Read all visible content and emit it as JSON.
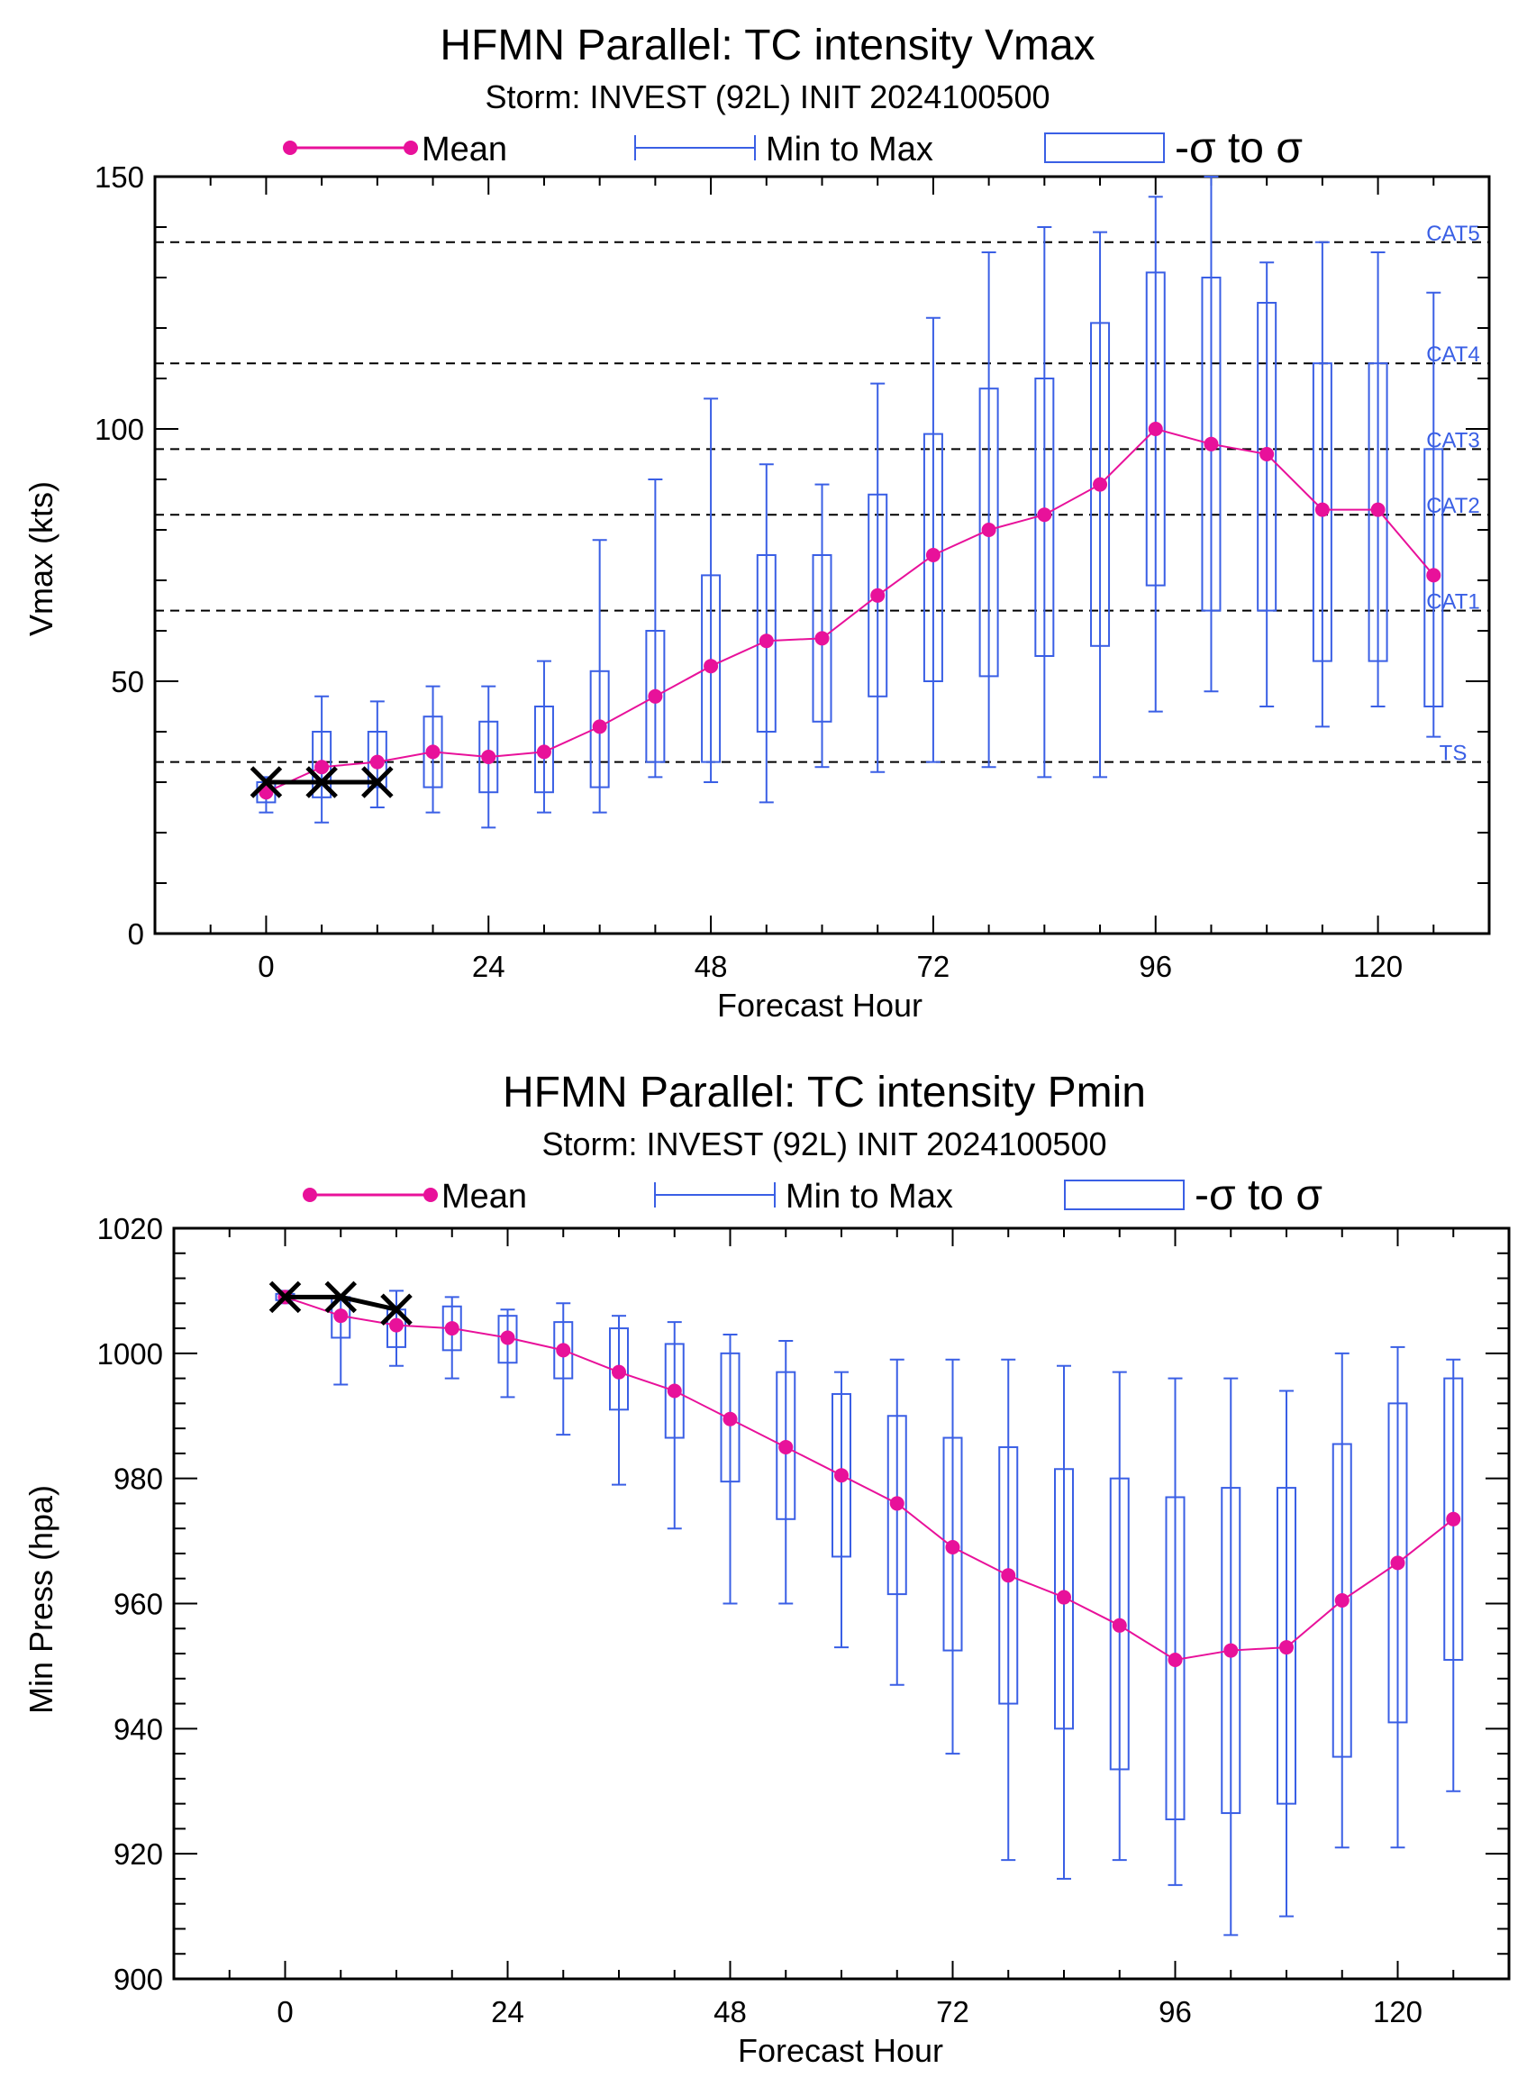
{
  "colors": {
    "mean": "#e8119a",
    "box": "#3a5fe5",
    "observed": "#000000",
    "threshold": "#000000"
  },
  "legend": {
    "mean": "Mean",
    "minmax": "Min to Max",
    "sigma": "-σ to σ"
  },
  "chart_data": [
    {
      "type": "box",
      "title": "HFMN Parallel: TC intensity Vmax",
      "subtitle": "Storm: INVEST (92L) INIT 2024100500",
      "xlabel": "Forecast Hour",
      "ylabel": "Vmax (kts)",
      "xlim": [
        -12,
        132
      ],
      "ylim": [
        0,
        150
      ],
      "xticks": [
        0,
        24,
        48,
        72,
        96,
        120
      ],
      "xtick_labels": [
        "0",
        "24",
        "48",
        "72",
        "96",
        "120"
      ],
      "yticks": [
        0,
        50,
        100,
        150
      ],
      "ytick_labels": [
        "0",
        "50",
        "100",
        "150"
      ],
      "thresholds": [
        {
          "label": "TS",
          "value": 34
        },
        {
          "label": "CAT1",
          "value": 64
        },
        {
          "label": "CAT2",
          "value": 83
        },
        {
          "label": "CAT3",
          "value": 96
        },
        {
          "label": "CAT4",
          "value": 113
        },
        {
          "label": "CAT5",
          "value": 137
        }
      ],
      "observed": {
        "x": [
          0,
          6,
          12
        ],
        "y": [
          30,
          30,
          30
        ]
      },
      "series": [
        {
          "name": "Mean",
          "x": [
            0,
            6,
            12,
            18,
            24,
            30,
            36,
            42,
            48,
            54,
            60,
            66,
            72,
            78,
            84,
            90,
            96,
            102,
            108,
            114,
            120,
            126
          ],
          "values": [
            28,
            33,
            34,
            36,
            35,
            36,
            41,
            47,
            53,
            58,
            58.5,
            67,
            75,
            80,
            83,
            89,
            100,
            97,
            95,
            84,
            84,
            71
          ]
        },
        {
          "name": "Min to Max",
          "min": [
            24,
            22,
            25,
            24,
            21,
            24,
            24,
            31,
            30,
            26,
            33,
            32,
            34,
            33,
            31,
            31,
            44,
            48,
            45,
            41,
            45,
            39
          ],
          "max": [
            31,
            47,
            46,
            49,
            49,
            54,
            78,
            90,
            106,
            93,
            89,
            109,
            122,
            135,
            140,
            139,
            146,
            150,
            133,
            137,
            135,
            127
          ]
        },
        {
          "name": "-σ to σ",
          "low": [
            26,
            27,
            29,
            29,
            28,
            28,
            29,
            34,
            34,
            40,
            42,
            47,
            50,
            51,
            55,
            57,
            69,
            64,
            64,
            54,
            54,
            45
          ],
          "high": [
            30,
            40,
            40,
            43,
            42,
            45,
            52,
            60,
            71,
            75,
            75,
            87,
            99,
            108,
            110,
            121,
            131,
            130,
            125,
            113,
            113,
            96
          ]
        }
      ]
    },
    {
      "type": "box",
      "title": "HFMN Parallel: TC intensity Pmin",
      "subtitle": "Storm: INVEST (92L) INIT 2024100500",
      "xlabel": "Forecast Hour",
      "ylabel": "Min Press (hpa)",
      "xlim": [
        -12,
        132
      ],
      "ylim": [
        900,
        1020
      ],
      "xticks": [
        0,
        24,
        48,
        72,
        96,
        120
      ],
      "xtick_labels": [
        "0",
        "24",
        "48",
        "72",
        "96",
        "120"
      ],
      "yticks": [
        900,
        920,
        940,
        960,
        980,
        1000,
        1020
      ],
      "ytick_labels": [
        "900",
        "920",
        "940",
        "960",
        "980",
        "1000",
        "1020"
      ],
      "thresholds": [],
      "observed": {
        "x": [
          0,
          6,
          12
        ],
        "y": [
          1009,
          1009,
          1007
        ]
      },
      "series": [
        {
          "name": "Mean",
          "x": [
            0,
            6,
            12,
            18,
            24,
            30,
            36,
            42,
            48,
            54,
            60,
            66,
            72,
            78,
            84,
            90,
            96,
            102,
            108,
            114,
            120,
            126
          ],
          "values": [
            1009,
            1006,
            1004.5,
            1004,
            1002.5,
            1000.5,
            997,
            994,
            989.5,
            985,
            980.5,
            976,
            969,
            964.5,
            961,
            956.5,
            951,
            952.5,
            953,
            960.5,
            966.5,
            973.5
          ]
        },
        {
          "name": "Min to Max",
          "min": [
            1008,
            995,
            998,
            996,
            993,
            987,
            979,
            972,
            960,
            960,
            953,
            947,
            936,
            919,
            916,
            919,
            915,
            907,
            910,
            921,
            921,
            930
          ],
          "max": [
            1010,
            1009,
            1010,
            1009,
            1007,
            1008,
            1006,
            1005,
            1003,
            1002,
            997,
            999,
            999,
            999,
            998,
            997,
            996,
            996,
            994,
            1000,
            1001,
            999
          ]
        },
        {
          "name": "-σ to σ",
          "low": [
            1008.5,
            1002.5,
            1001,
            1000.5,
            998.5,
            996,
            991,
            986.5,
            979.5,
            973.5,
            967.5,
            961.5,
            952.5,
            944,
            940,
            933.5,
            925.5,
            926.5,
            928,
            935.5,
            941,
            951
          ],
          "high": [
            1009.5,
            1009,
            1007,
            1007.5,
            1006,
            1005,
            1004,
            1001.5,
            1000,
            997,
            993.5,
            990,
            986.5,
            985,
            981.5,
            980,
            977,
            978.5,
            978.5,
            985.5,
            992,
            996
          ]
        }
      ]
    }
  ]
}
